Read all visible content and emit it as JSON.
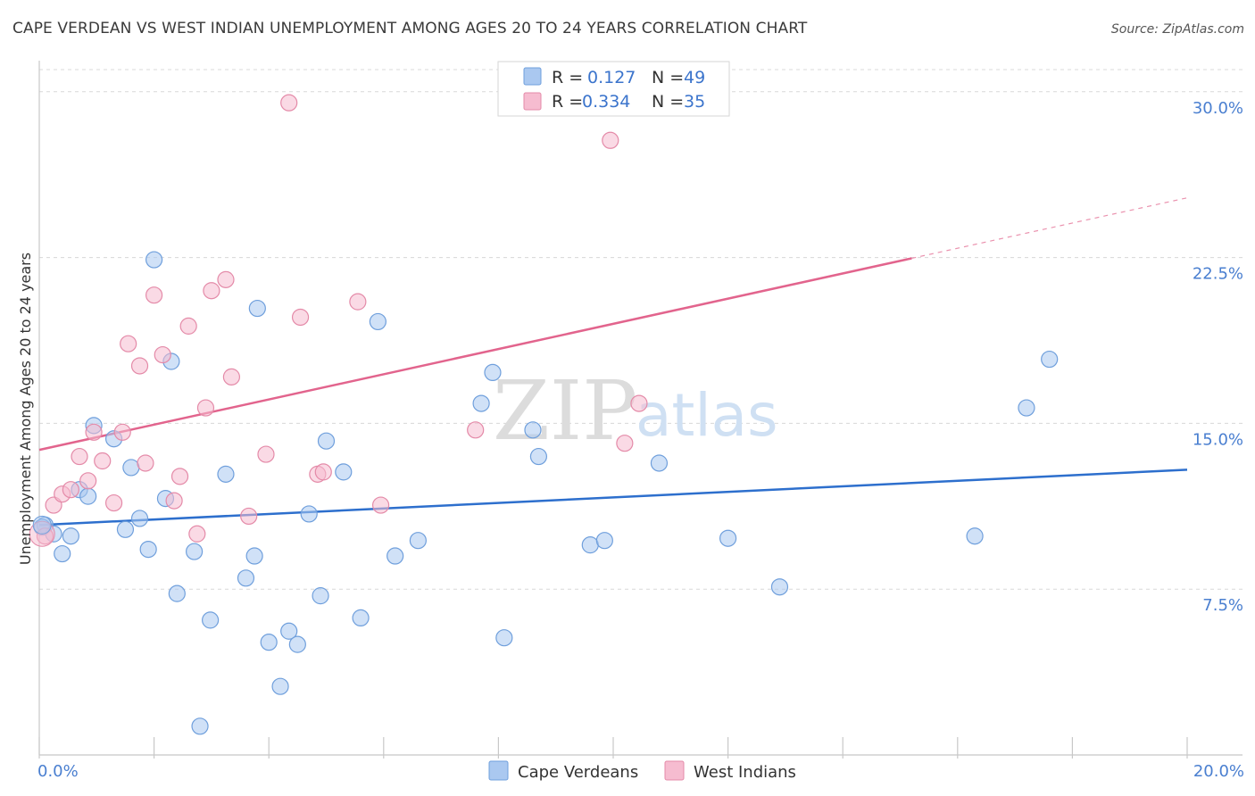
{
  "title": "CAPE VERDEAN VS WEST INDIAN UNEMPLOYMENT AMONG AGES 20 TO 24 YEARS CORRELATION CHART",
  "source": "Source: ZipAtlas.com",
  "watermark": {
    "zip": "ZIP",
    "atlas": "atlas"
  },
  "colors": {
    "blue_fill": "#aac8f0",
    "blue_stroke": "#6f9fdc",
    "blue_line": "#2d6fcd",
    "pink_fill": "#f6bcd0",
    "pink_stroke": "#e48aa8",
    "pink_line": "#e2648d",
    "grid": "#d8d8d8",
    "tick_text": "#4a7fd0"
  },
  "legend": {
    "rows": [
      {
        "r_label": "R =",
        "r_value": "0.127",
        "n_label": "N =",
        "n_value": "49"
      },
      {
        "r_label": "R =",
        "r_value": "0.334",
        "n_label": "N =",
        "n_value": "35"
      }
    ]
  },
  "chart_data": {
    "type": "scatter",
    "title": "CAPE VERDEAN VS WEST INDIAN UNEMPLOYMENT AMONG AGES 20 TO 24 YEARS CORRELATION CHART",
    "xlabel": "",
    "ylabel": "Unemployment Among Ages 20 to 24 years",
    "xlim": [
      0,
      20
    ],
    "ylim": [
      0,
      31
    ],
    "x_tick_labels": [
      {
        "value": 0,
        "label": "0.0%"
      },
      {
        "value": 20,
        "label": "20.0%"
      }
    ],
    "y_tick_labels": [
      {
        "value": 7.5,
        "label": "7.5%"
      },
      {
        "value": 15,
        "label": "15.0%"
      },
      {
        "value": 22.5,
        "label": "22.5%"
      },
      {
        "value": 30,
        "label": "30.0%"
      }
    ],
    "legend_position": "top-center",
    "series": [
      {
        "name": "Cape Verdeans",
        "color": "blue",
        "r": 0.127,
        "n": 49,
        "trend": {
          "x0": 0,
          "y0": 10.4,
          "x1": 20,
          "y1": 12.9,
          "dashed_from": null
        },
        "points": [
          [
            0.1,
            10.4
          ],
          [
            0.25,
            10.0
          ],
          [
            0.4,
            9.1
          ],
          [
            0.55,
            9.9
          ],
          [
            0.7,
            12.0
          ],
          [
            0.85,
            11.7
          ],
          [
            0.95,
            14.9
          ],
          [
            1.3,
            14.3
          ],
          [
            1.5,
            10.2
          ],
          [
            1.6,
            13.0
          ],
          [
            1.75,
            10.7
          ],
          [
            1.9,
            9.3
          ],
          [
            2.0,
            22.4
          ],
          [
            2.2,
            11.6
          ],
          [
            2.3,
            17.8
          ],
          [
            2.4,
            7.3
          ],
          [
            2.7,
            9.2
          ],
          [
            2.8,
            1.3
          ],
          [
            2.98,
            6.1
          ],
          [
            3.25,
            12.7
          ],
          [
            3.6,
            8.0
          ],
          [
            3.75,
            9.0
          ],
          [
            3.8,
            20.2
          ],
          [
            4.0,
            5.1
          ],
          [
            4.2,
            3.1
          ],
          [
            4.35,
            5.6
          ],
          [
            4.5,
            5.0
          ],
          [
            4.7,
            10.9
          ],
          [
            4.9,
            7.2
          ],
          [
            5.0,
            14.2
          ],
          [
            5.3,
            12.8
          ],
          [
            5.6,
            6.2
          ],
          [
            5.9,
            19.6
          ],
          [
            6.2,
            9.0
          ],
          [
            6.6,
            9.7
          ],
          [
            7.7,
            15.9
          ],
          [
            7.9,
            17.3
          ],
          [
            8.1,
            5.3
          ],
          [
            8.6,
            14.7
          ],
          [
            8.7,
            13.5
          ],
          [
            9.6,
            9.5
          ],
          [
            9.85,
            9.7
          ],
          [
            10.8,
            13.2
          ],
          [
            12.0,
            9.8
          ],
          [
            12.9,
            7.6
          ],
          [
            16.3,
            9.9
          ],
          [
            17.2,
            15.7
          ],
          [
            17.6,
            17.9
          ],
          [
            0.05,
            10.3
          ]
        ]
      },
      {
        "name": "West Indians",
        "color": "pink",
        "r": 0.334,
        "n": 35,
        "trend": {
          "x0": 0,
          "y0": 13.8,
          "x1": 20,
          "y1": 25.2,
          "dashed_from": 15.2
        },
        "points": [
          [
            0.1,
            9.9
          ],
          [
            0.25,
            11.3
          ],
          [
            0.4,
            11.8
          ],
          [
            0.55,
            12.0
          ],
          [
            0.7,
            13.5
          ],
          [
            0.85,
            12.4
          ],
          [
            0.95,
            14.6
          ],
          [
            1.1,
            13.3
          ],
          [
            1.3,
            11.4
          ],
          [
            1.45,
            14.6
          ],
          [
            1.55,
            18.6
          ],
          [
            1.75,
            17.6
          ],
          [
            1.85,
            13.2
          ],
          [
            2.0,
            20.8
          ],
          [
            2.15,
            18.1
          ],
          [
            2.35,
            11.5
          ],
          [
            2.45,
            12.6
          ],
          [
            2.6,
            19.4
          ],
          [
            2.75,
            10.0
          ],
          [
            2.9,
            15.7
          ],
          [
            3.0,
            21.0
          ],
          [
            3.25,
            21.5
          ],
          [
            3.35,
            17.1
          ],
          [
            3.65,
            10.8
          ],
          [
            3.95,
            13.6
          ],
          [
            4.35,
            29.5
          ],
          [
            4.55,
            19.8
          ],
          [
            4.85,
            12.7
          ],
          [
            4.95,
            12.8
          ],
          [
            5.55,
            20.5
          ],
          [
            5.95,
            11.3
          ],
          [
            7.6,
            14.7
          ],
          [
            9.95,
            27.8
          ],
          [
            10.2,
            14.1
          ],
          [
            10.45,
            15.9
          ]
        ]
      }
    ]
  },
  "bottom_legend": [
    {
      "label": "Cape Verdeans"
    },
    {
      "label": "West Indians"
    }
  ]
}
